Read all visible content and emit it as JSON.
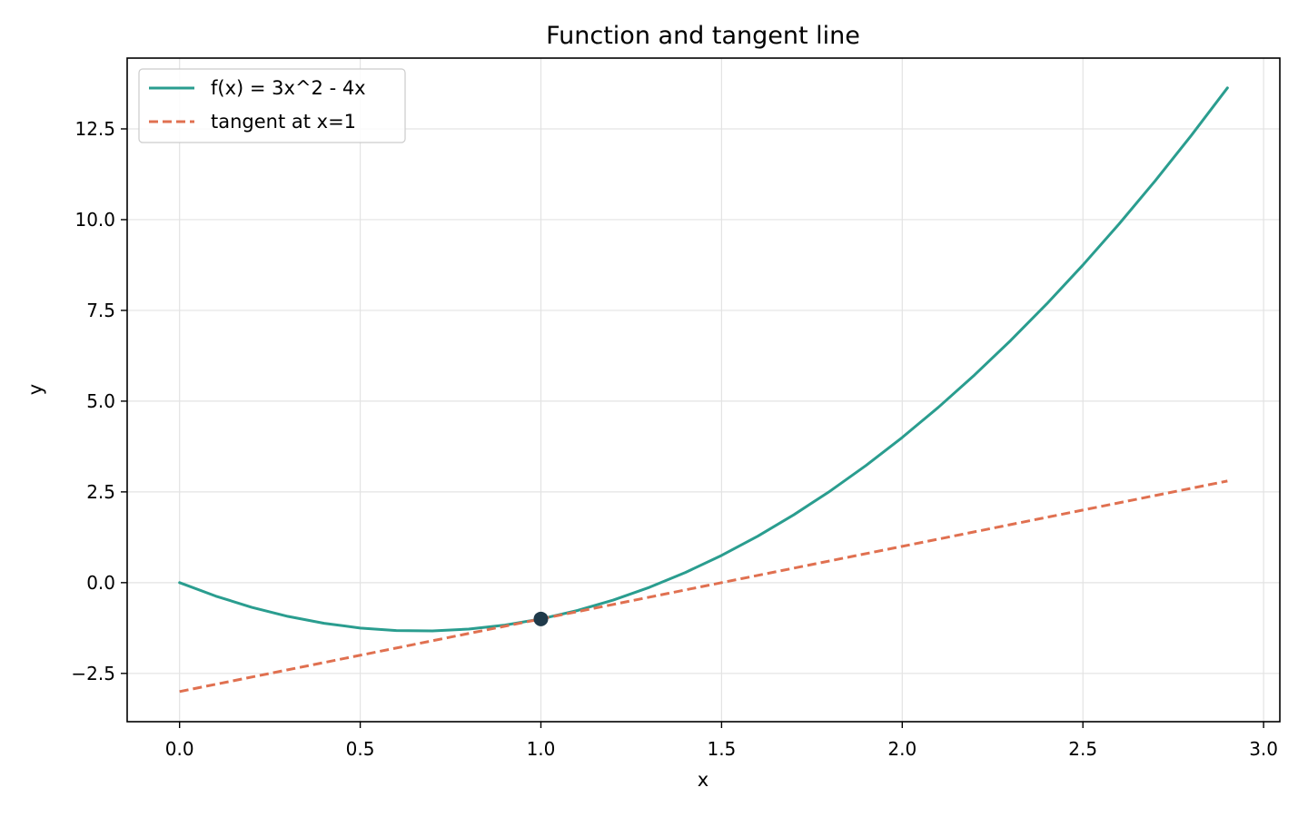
{
  "chart_data": {
    "type": "line",
    "title": "Function and tangent line",
    "xlabel": "x",
    "ylabel": "y",
    "xlim": [
      -0.145,
      3.045
    ],
    "ylim": [
      -3.83,
      14.45
    ],
    "xticks": [
      0.0,
      0.5,
      1.0,
      1.5,
      2.0,
      2.5,
      3.0
    ],
    "xtick_labels": [
      "0.0",
      "0.5",
      "1.0",
      "1.5",
      "2.0",
      "2.5",
      "3.0"
    ],
    "yticks": [
      -2.5,
      0.0,
      2.5,
      5.0,
      7.5,
      10.0,
      12.5
    ],
    "ytick_labels": [
      "−2.5",
      "0.0",
      "2.5",
      "5.0",
      "7.5",
      "10.0",
      "12.5"
    ],
    "grid": true,
    "legend_position": "top-left",
    "series": [
      {
        "name": "f(x) = 3x^2 - 4x",
        "style": "solid",
        "color": "#2a9d8f",
        "x": [
          0.0,
          0.1,
          0.2,
          0.3,
          0.4,
          0.5,
          0.6,
          0.7,
          0.8,
          0.9,
          1.0,
          1.1,
          1.2,
          1.3,
          1.4,
          1.5,
          1.6,
          1.7,
          1.8,
          1.9,
          2.0,
          2.1,
          2.2,
          2.3,
          2.4,
          2.5,
          2.6,
          2.7,
          2.8,
          2.9
        ],
        "y": [
          0.0,
          -0.37,
          -0.68,
          -0.93,
          -1.12,
          -1.25,
          -1.32,
          -1.33,
          -1.28,
          -1.17,
          -1.0,
          -0.77,
          -0.48,
          -0.13,
          0.28,
          0.75,
          1.28,
          1.87,
          2.52,
          3.23,
          4.0,
          4.83,
          5.72,
          6.67,
          7.68,
          8.75,
          9.88,
          11.07,
          12.32,
          13.63
        ]
      },
      {
        "name": "tangent at x=1",
        "style": "dashed",
        "color": "#e07050",
        "x": [
          0.0,
          2.9
        ],
        "y": [
          -3.0,
          2.8
        ]
      }
    ],
    "points": [
      {
        "x": 1.0,
        "y": -1.0,
        "color": "#1f3a4a"
      }
    ]
  }
}
